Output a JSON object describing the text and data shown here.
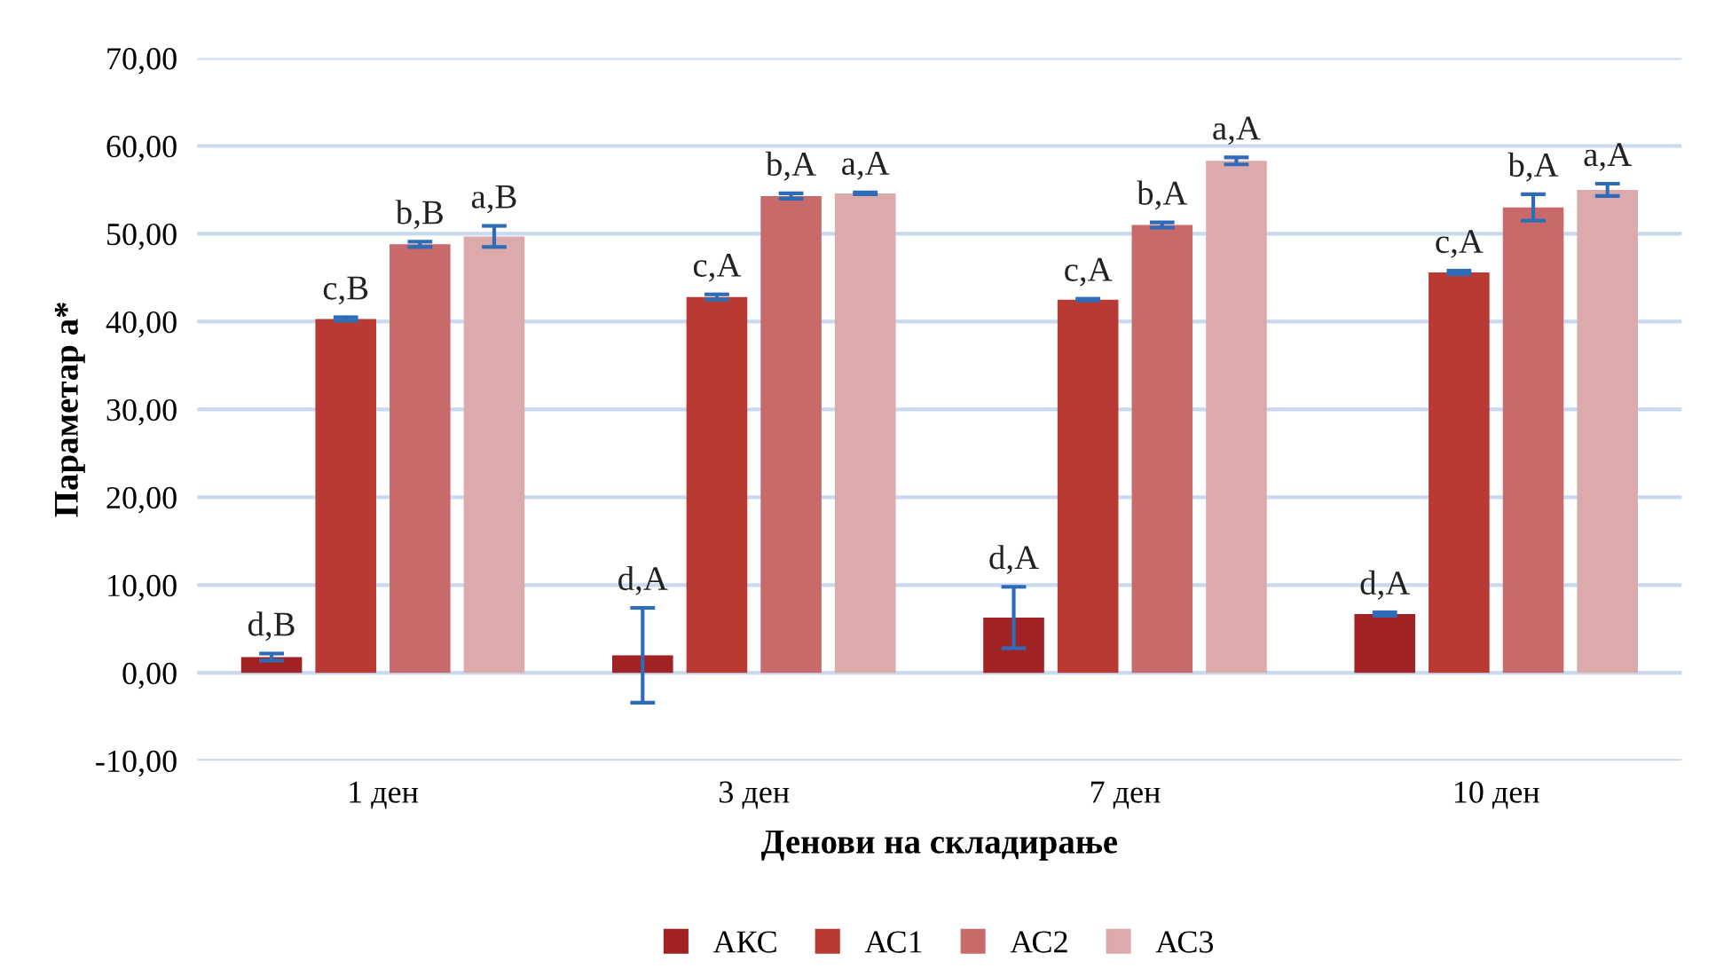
{
  "chart_data": {
    "type": "bar",
    "xlabel": "Денови на складирање",
    "ylabel": "Параметар a*",
    "categories": [
      "1 ден",
      "3 ден",
      "7 ден",
      "10 ден"
    ],
    "series": [
      {
        "name": "АКС",
        "color": "#a02222",
        "values": [
          1.8,
          2.0,
          6.3,
          6.7
        ],
        "errors": [
          0.4,
          5.4,
          3.5,
          0.2
        ],
        "value_labels": [
          "d,B",
          "d,A",
          "d,A",
          "d,A"
        ]
      },
      {
        "name": "АС1",
        "color": "#b93a33",
        "values": [
          40.3,
          42.8,
          42.5,
          45.6
        ],
        "errors": [
          0.2,
          0.3,
          0.1,
          0.2
        ],
        "value_labels": [
          "c,B",
          "c,A",
          "c,A",
          "c,A"
        ]
      },
      {
        "name": "АС2",
        "color": "#c96a6a",
        "values": [
          48.8,
          54.3,
          51.0,
          53.0
        ],
        "errors": [
          0.3,
          0.3,
          0.3,
          1.5
        ],
        "value_labels": [
          "b,B",
          "b,A",
          "b,A",
          "b,A"
        ]
      },
      {
        "name": "АС3",
        "color": "#dcaaaa",
        "values": [
          49.7,
          54.6,
          58.3,
          55.0
        ],
        "errors": [
          1.2,
          0.1,
          0.4,
          0.7
        ],
        "value_labels": [
          "a,B",
          "a,A",
          "a,A",
          "a,A"
        ]
      }
    ],
    "ylim": [
      -10,
      70
    ],
    "yticks": [
      {
        "value": -10,
        "label": "-10,00"
      },
      {
        "value": 0,
        "label": "0,00"
      },
      {
        "value": 10,
        "label": "10,00"
      },
      {
        "value": 20,
        "label": "20,00"
      },
      {
        "value": 30,
        "label": "30,00"
      },
      {
        "value": 40,
        "label": "40,00"
      },
      {
        "value": 50,
        "label": "50,00"
      },
      {
        "value": 60,
        "label": "60,00"
      },
      {
        "value": 70,
        "label": "70,00"
      }
    ],
    "grid": "y",
    "legend": "bottom"
  }
}
